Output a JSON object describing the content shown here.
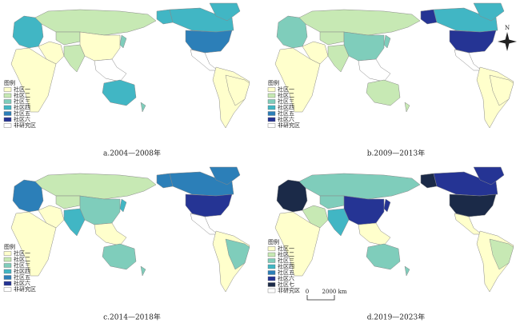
{
  "panels": [
    {
      "caption": "a.2004—2008年",
      "legend": {
        "title": "图例",
        "items": [
          "社区一",
          "社区二",
          "社区三",
          "社区四",
          "社区五",
          "社区六",
          "非研究区"
        ]
      }
    },
    {
      "caption": "b.2009—2013年",
      "legend": {
        "title": "图例",
        "items": [
          "社区一",
          "社区二",
          "社区三",
          "社区四",
          "社区五",
          "社区六",
          "非研究区"
        ]
      }
    },
    {
      "caption": "c.2014—2018年",
      "legend": {
        "title": "图例",
        "items": [
          "社区一",
          "社区二",
          "社区三",
          "社区四",
          "社区五",
          "社区六",
          "非研究区"
        ]
      }
    },
    {
      "caption": "d.2019—2023年",
      "legend": {
        "title": "图例",
        "items": [
          "社区一",
          "社区二",
          "社区三",
          "社区四",
          "社区五",
          "社区六",
          "社区七",
          "非研究区"
        ]
      }
    }
  ],
  "scale_bar": {
    "zero": "0",
    "label": "2000 km"
  },
  "north": "N"
}
